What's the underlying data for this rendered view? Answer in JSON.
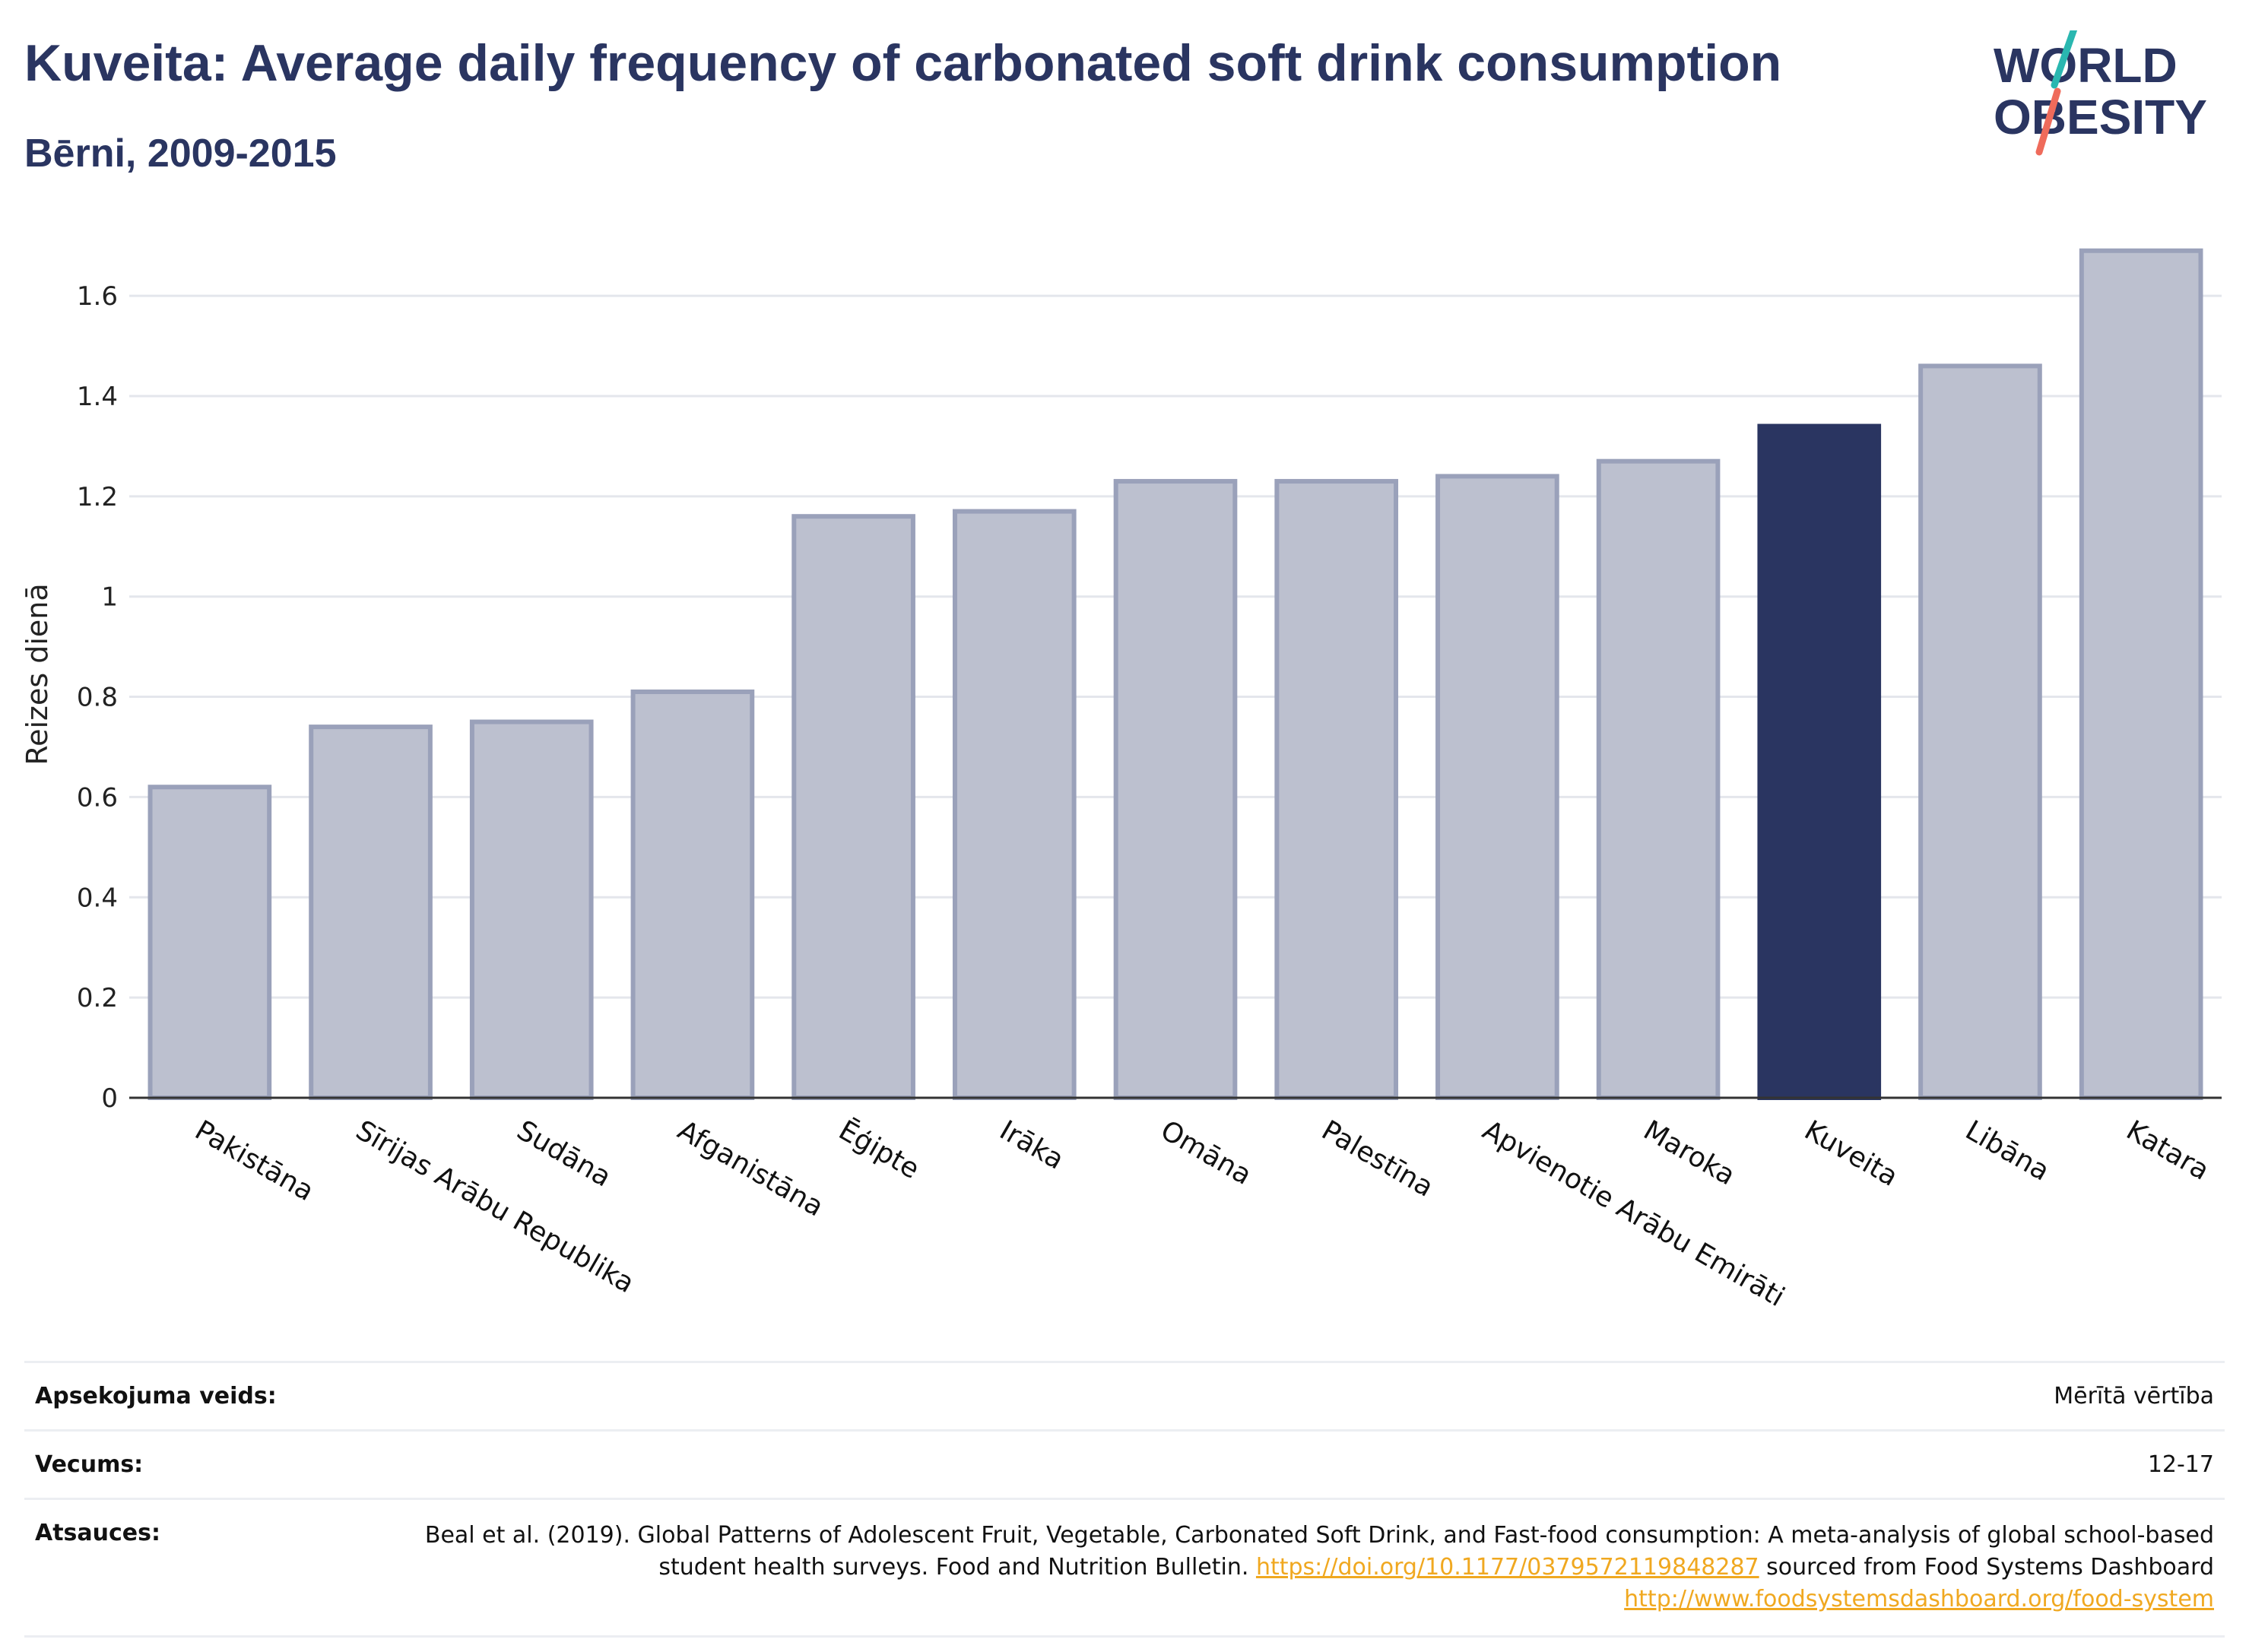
{
  "header": {
    "title": "Kuveita: Average daily frequency of carbonated soft drink consumption",
    "subtitle": "Bērni, 2009-2015"
  },
  "logo": {
    "line1": "WORLD",
    "line2": "OBESITY",
    "colors": {
      "text": "#2a3561",
      "teal": "#2ab7b0",
      "coral": "#ef6b5b"
    }
  },
  "chart_data": {
    "type": "bar",
    "categories": [
      "Pakistāna",
      "Sīrijas Arābu Republika",
      "Sudāna",
      "Afganistāna",
      "Ēģipte",
      "Irāka",
      "Omāna",
      "Palestīna",
      "Apvienotie Arābu Emirāti",
      "Maroka",
      "Kuveita",
      "Libāna",
      "Katara"
    ],
    "values": [
      0.62,
      0.74,
      0.75,
      0.81,
      1.16,
      1.17,
      1.23,
      1.23,
      1.24,
      1.27,
      1.34,
      1.46,
      1.69
    ],
    "highlight": "Kuveita",
    "ylabel": "Reizes dienā",
    "xlabel": "",
    "ylim": [
      0,
      1.72
    ],
    "yticks": [
      0,
      0.2,
      0.4,
      0.6,
      0.8,
      1,
      1.2,
      1.4,
      1.6
    ],
    "ytick_labels": [
      "0",
      "0.2",
      "0.4",
      "0.6",
      "0.8",
      "1",
      "1.2",
      "1.4",
      "1.6"
    ],
    "grid": true,
    "colors": {
      "bar": "#bcc0cf",
      "bar_edge": "#9aa1ba",
      "highlight": "#2a3561",
      "grid": "#e4e6ec"
    }
  },
  "info": {
    "survey_label": "Apsekojuma veids:",
    "survey_value": "Mērītā vērtība",
    "age_label": "Vecums:",
    "age_value": "12-17",
    "refs_label": "Atsauces:",
    "refs_text1": "Beal et al. (2019). Global Patterns of Adolescent Fruit, Vegetable, Carbonated Soft Drink, and Fast-food consumption: A meta-analysis of global school-based student health surveys. Food and Nutrition Bulletin.",
    "refs_link1": "https://doi.org/10.1177/0379572119848287",
    "refs_text2": "sourced from Food Systems Dashboard",
    "refs_link2": "http://www.foodsystemsdashboard.org/food-system"
  }
}
